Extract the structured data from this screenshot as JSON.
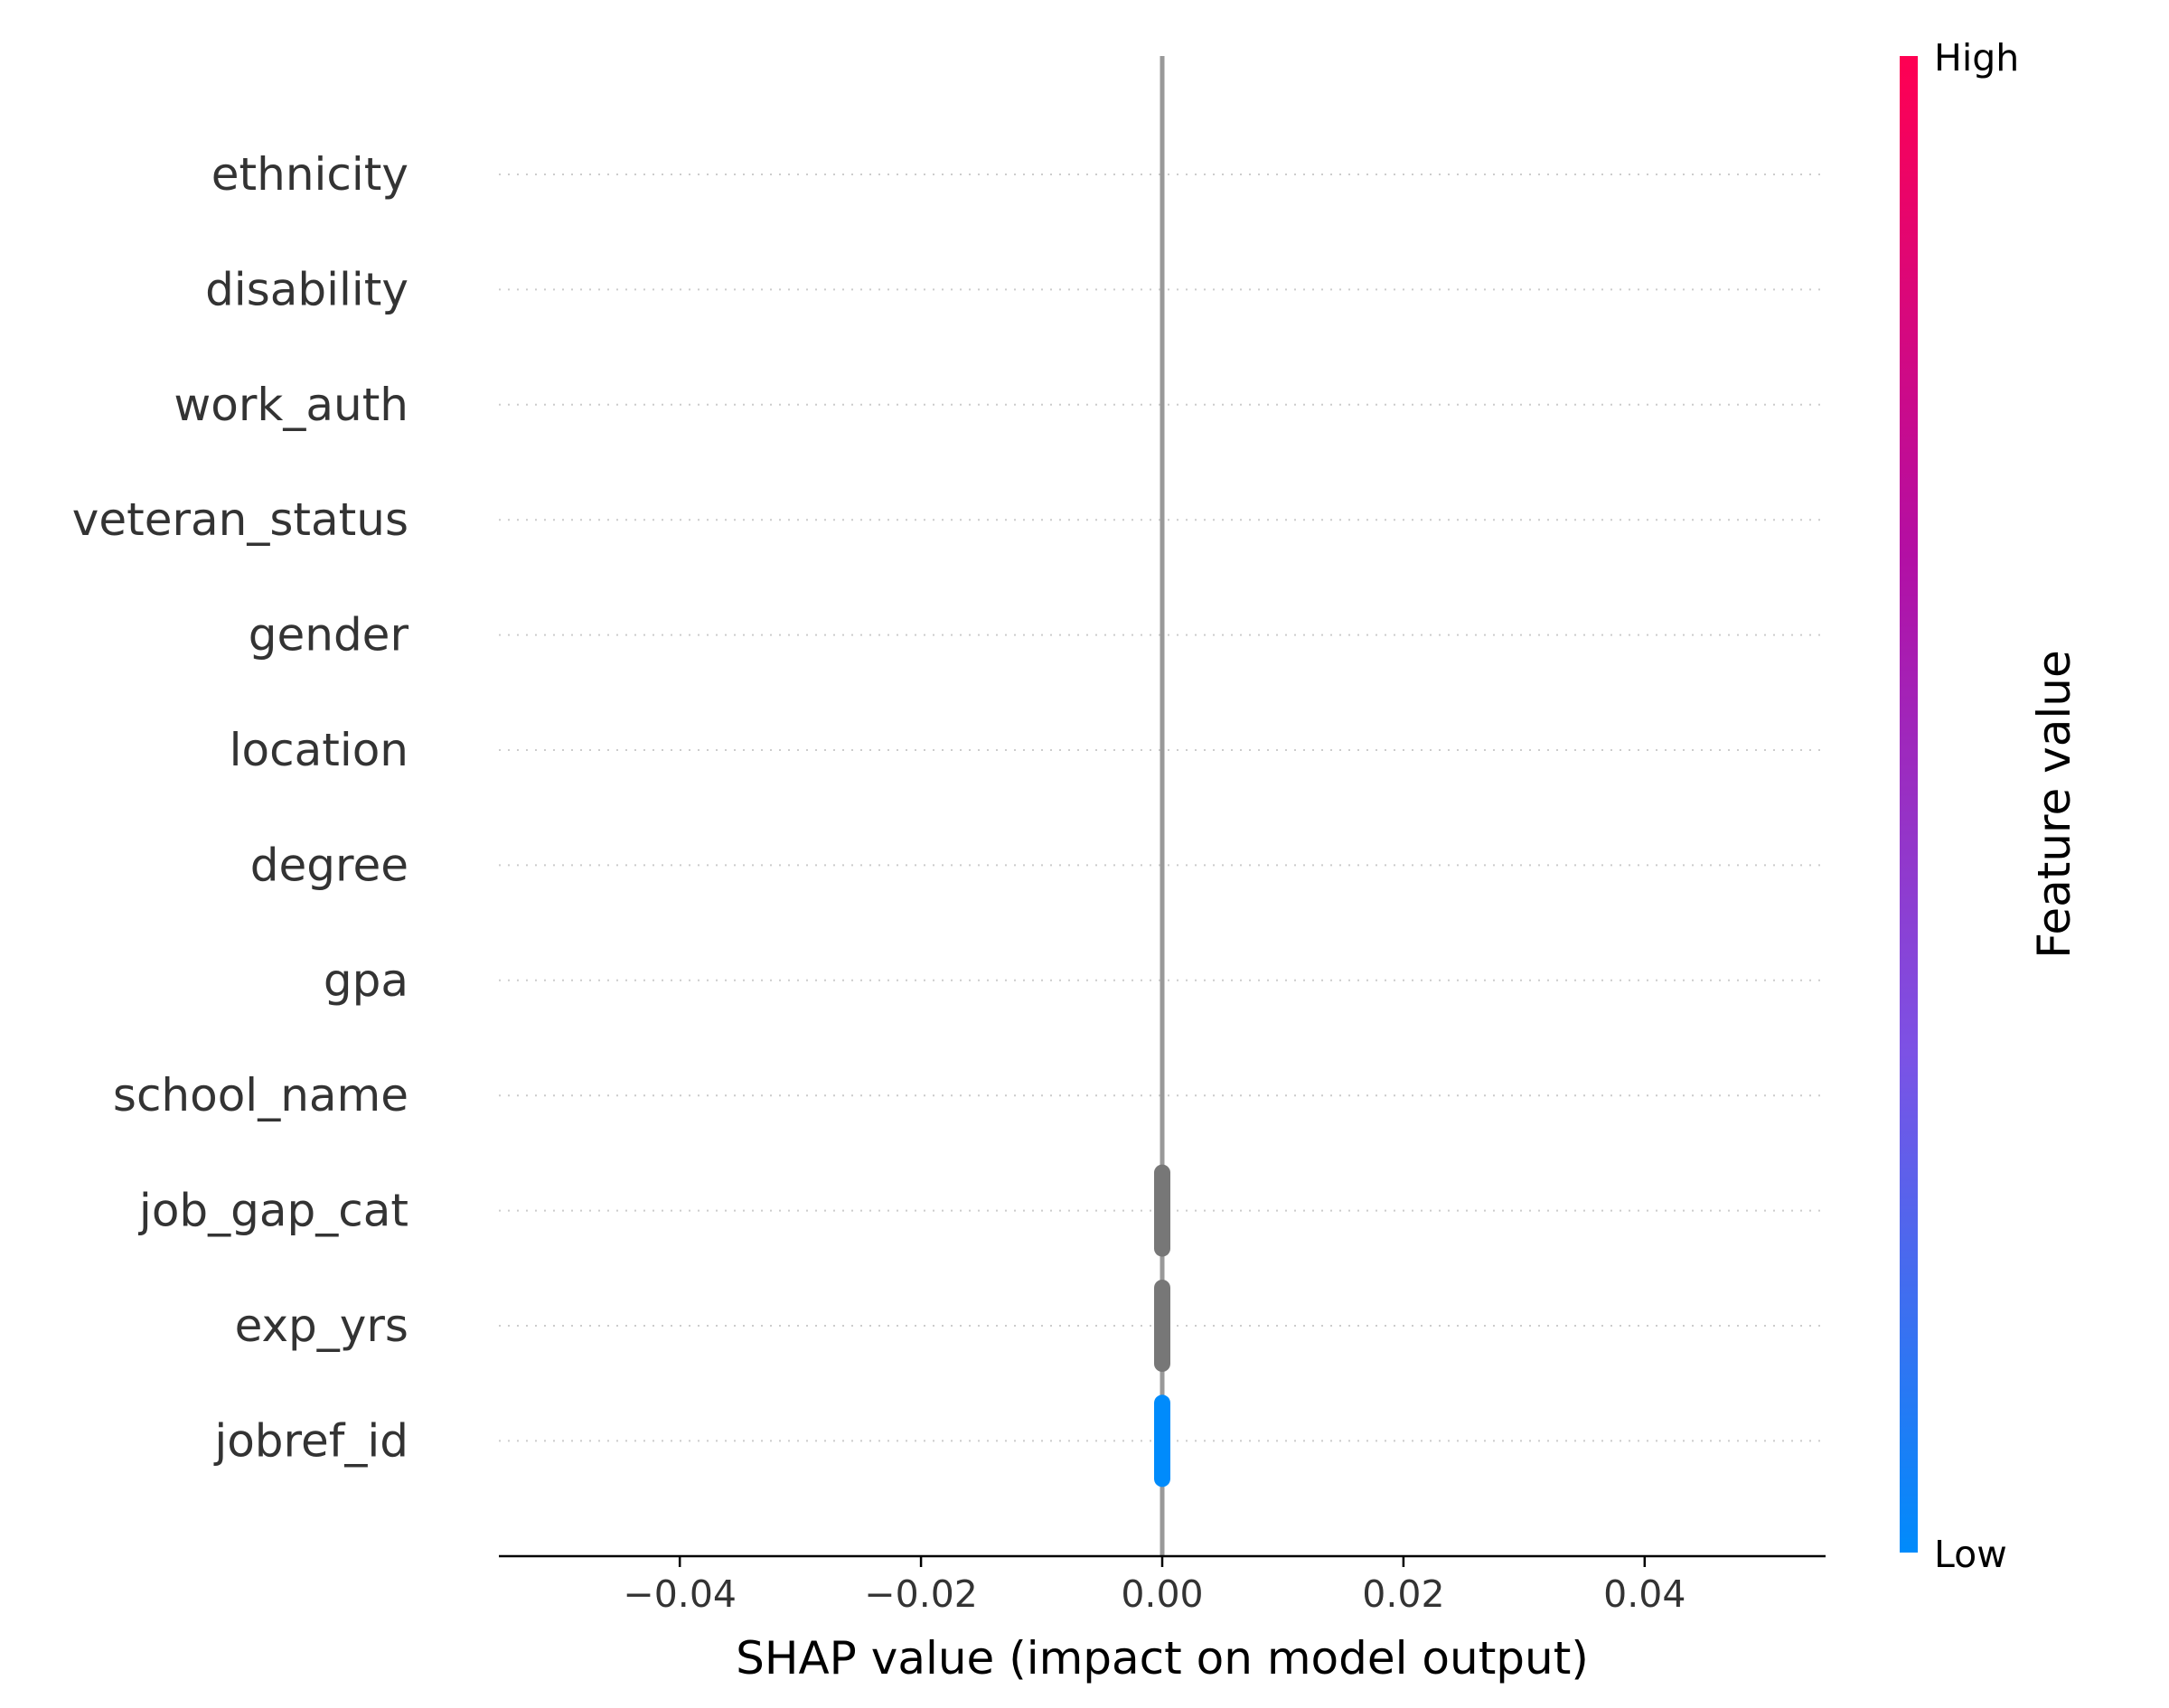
{
  "chart_data": {
    "type": "scatter",
    "subtype": "shap-beeswarm",
    "xlabel": "SHAP value (impact on model output)",
    "xlim": [
      -0.055,
      0.055
    ],
    "xticks": [
      -0.04,
      -0.02,
      0.0,
      0.02,
      0.04
    ],
    "xtick_labels": [
      "−0.04",
      "−0.02",
      "0.00",
      "0.02",
      "0.04"
    ],
    "zero_line": true,
    "grid": "horizontal dotted",
    "features": [
      {
        "name": "ethnicity",
        "shap_values": [],
        "color": null
      },
      {
        "name": "disability",
        "shap_values": [],
        "color": null
      },
      {
        "name": "work_auth",
        "shap_values": [],
        "color": null
      },
      {
        "name": "veteran_status",
        "shap_values": [],
        "color": null
      },
      {
        "name": "gender",
        "shap_values": [],
        "color": null
      },
      {
        "name": "location",
        "shap_values": [],
        "color": null
      },
      {
        "name": "degree",
        "shap_values": [],
        "color": null
      },
      {
        "name": "gpa",
        "shap_values": [],
        "color": null
      },
      {
        "name": "school_name",
        "shap_values": [],
        "color": null
      },
      {
        "name": "job_gap_cat",
        "shap_values": [
          0.0
        ],
        "color": "#777777"
      },
      {
        "name": "exp_yrs",
        "shap_values": [
          0.0
        ],
        "color": "#777777"
      },
      {
        "name": "jobref_id",
        "shap_values": [
          0.0
        ],
        "color": "#008bfb"
      }
    ],
    "colorbar": {
      "label": "Feature value",
      "high_label": "High",
      "low_label": "Low",
      "colors": [
        "#008bfb",
        "#7c52e5",
        "#b30fa4",
        "#ff0052"
      ]
    }
  }
}
